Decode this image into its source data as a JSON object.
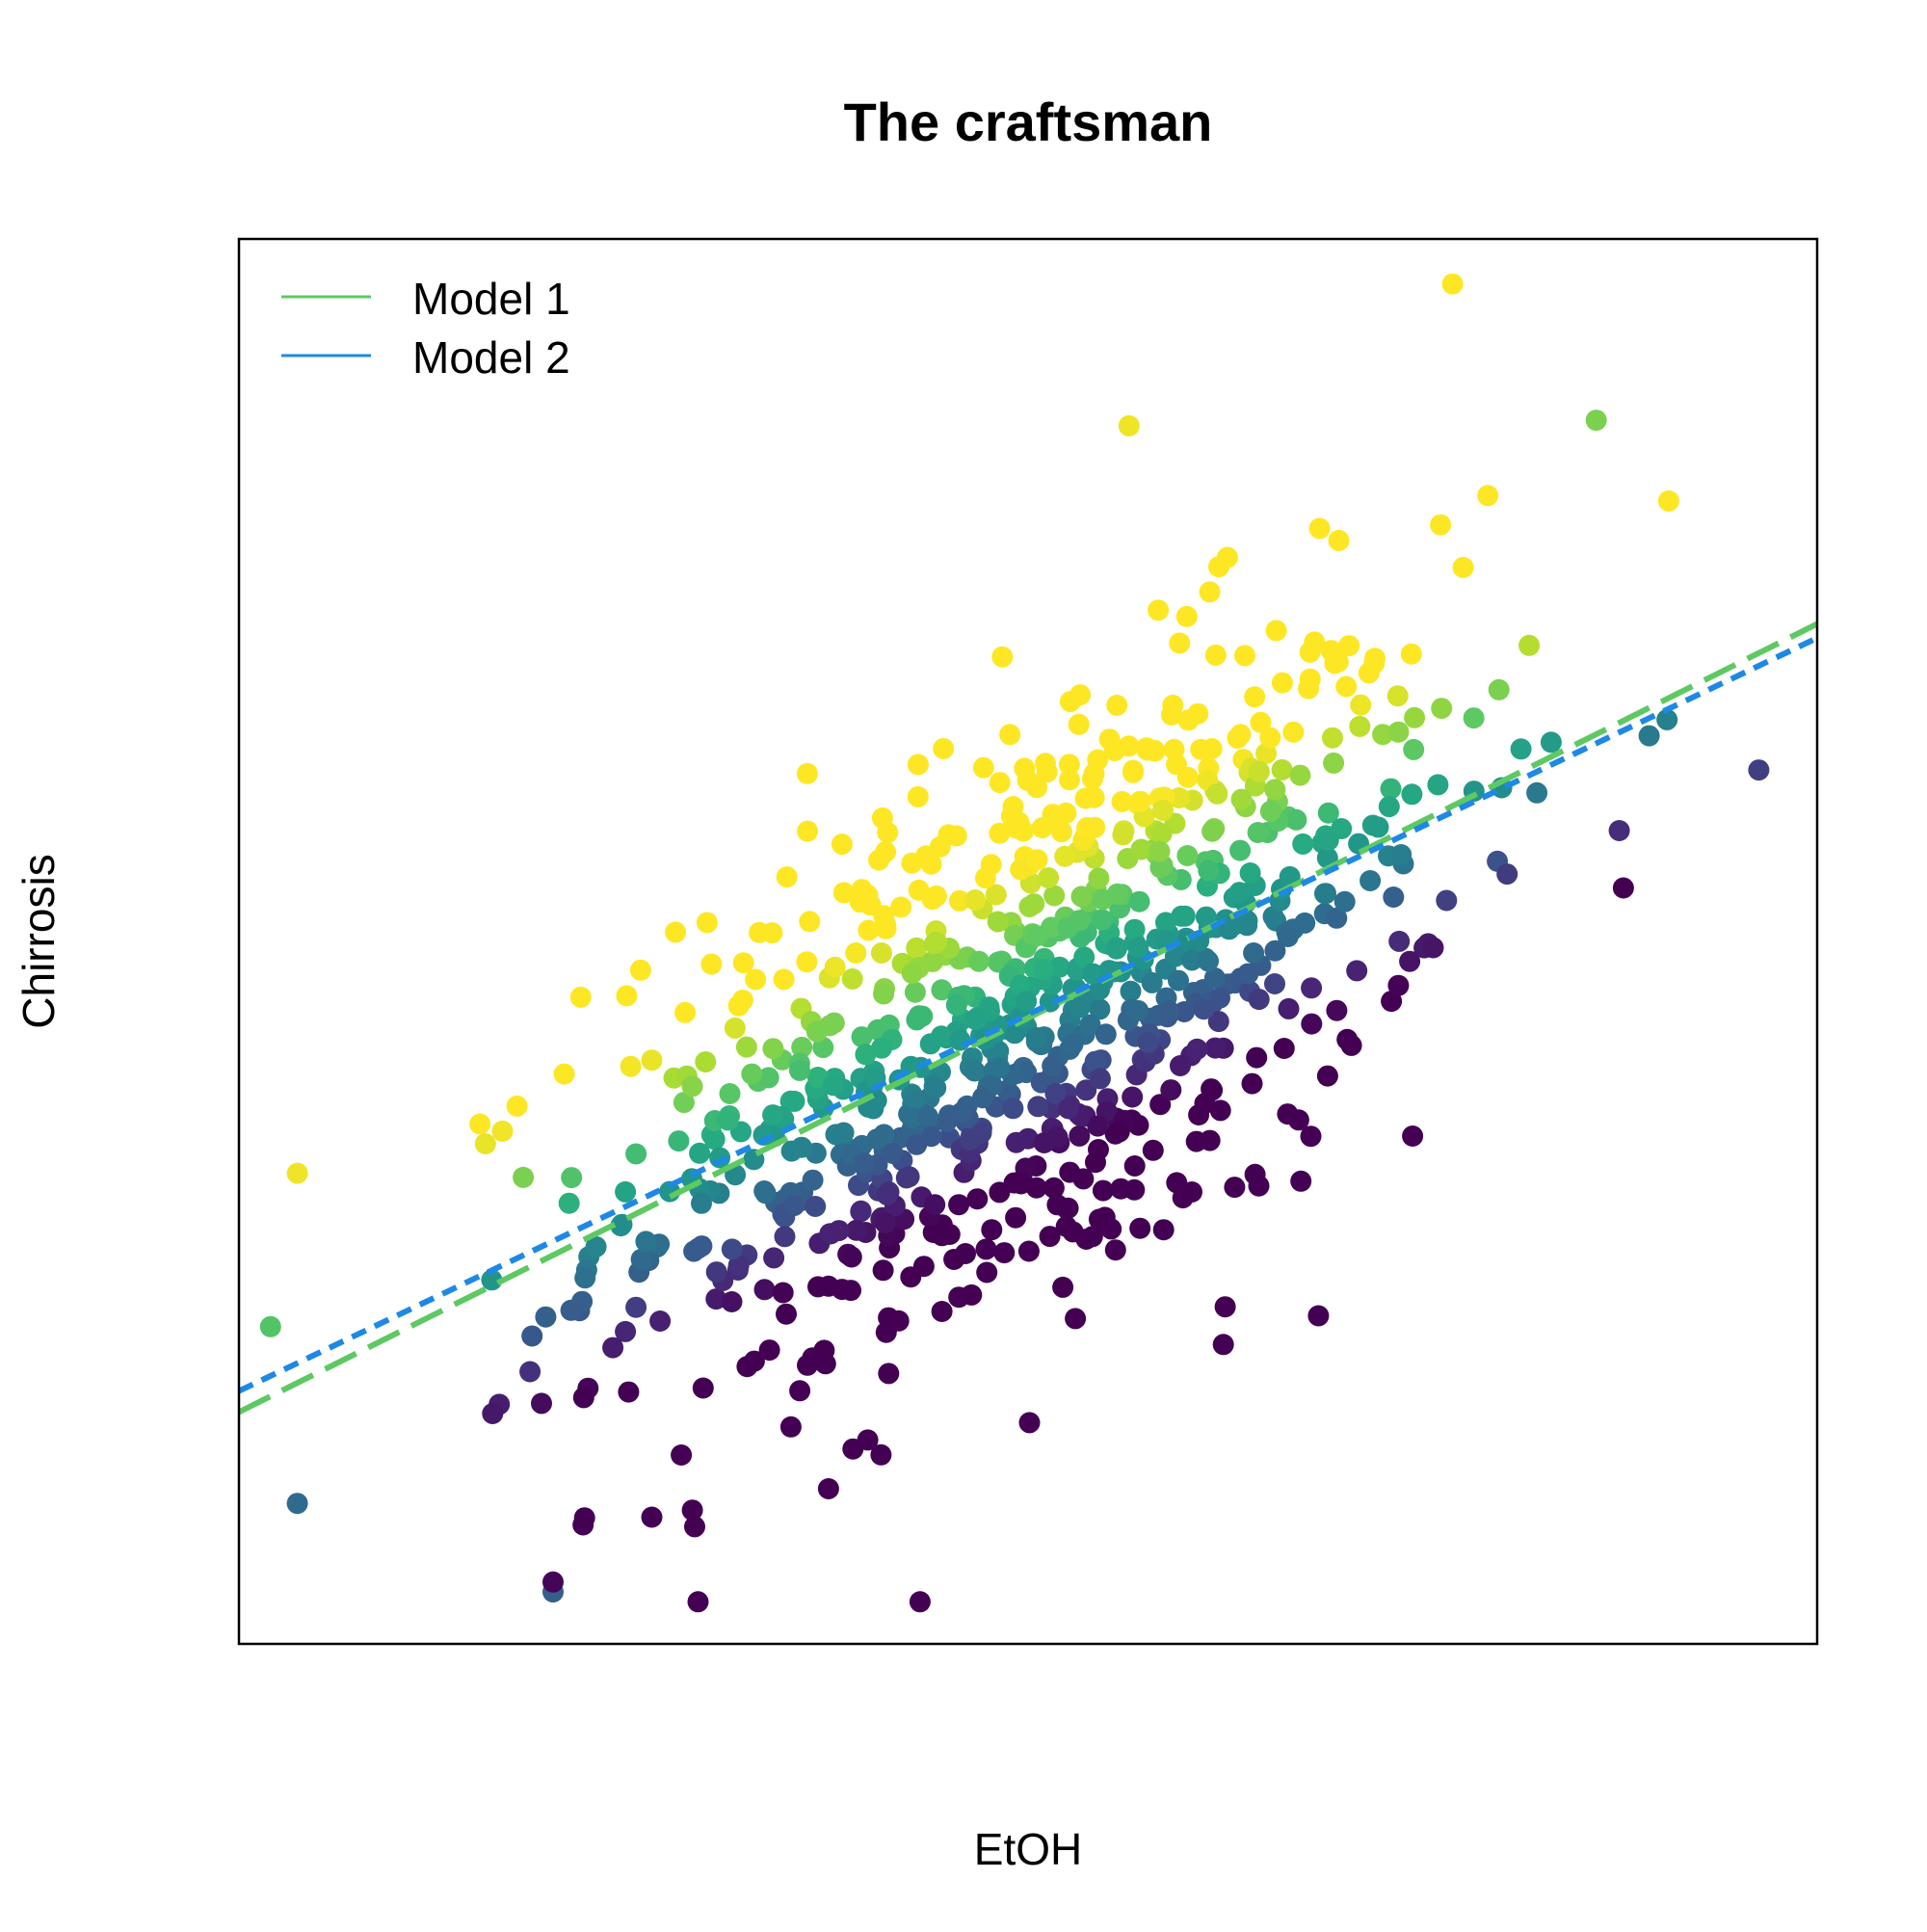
{
  "chart_data": {
    "type": "scatter",
    "title": "The craftsman",
    "xlabel": "EtOH",
    "ylabel": "Chirrosis",
    "xlim": [
      0,
      100
    ],
    "ylim": [
      0,
      100
    ],
    "axis_ticks": "none",
    "grid": false,
    "legend": {
      "position": "top-left",
      "entries": [
        {
          "label": "Model 1",
          "color": "#5ec962",
          "line": "long-dash"
        },
        {
          "label": "Model 2",
          "color": "#1e88e5",
          "line": "short-dash"
        }
      ]
    },
    "color_scale": "viridis (point colour follows residual: purple low, yellow high)",
    "lines": [
      {
        "name": "Model 1",
        "color": "#5ec962",
        "x": [
          0,
          100
        ],
        "y": [
          16.5,
          72.6
        ]
      },
      {
        "name": "Model 2",
        "color": "#1e88e5",
        "x": [
          0,
          100
        ],
        "y": [
          18.0,
          71.6
        ]
      }
    ],
    "n_points": 900,
    "points_sample_note": "approximate cloud: x mean ~50, sd ~14; y follows trend with residual scatter",
    "points_highlight": [
      {
        "x": 3.7,
        "y": 33.5,
        "c": 0.98
      },
      {
        "x": 3.7,
        "y": 10.0,
        "c": 0.35
      },
      {
        "x": 76.9,
        "y": 96.8,
        "c": 1.0
      },
      {
        "x": 86.0,
        "y": 87.1,
        "c": 0.8
      },
      {
        "x": 96.3,
        "y": 62.2,
        "c": 0.2
      },
      {
        "x": 19.9,
        "y": 3.7,
        "c": 0.3
      },
      {
        "x": 19.9,
        "y": 4.4,
        "c": 0.02
      },
      {
        "x": 56.4,
        "y": 86.7,
        "c": 0.98
      }
    ]
  },
  "colors": {
    "background": "#ffffff",
    "frame": "#000000"
  }
}
